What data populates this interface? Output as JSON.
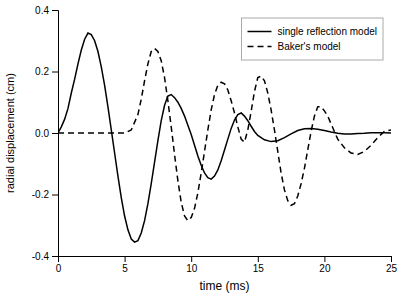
{
  "chart_data": {
    "type": "line",
    "xlabel": "time (ms)",
    "ylabel": "radial displacement (cm)",
    "xlim": [
      0,
      25
    ],
    "ylim": [
      -0.4,
      0.4
    ],
    "xticks": [
      0,
      5,
      10,
      15,
      20,
      25
    ],
    "yticks": [
      -0.4,
      -0.2,
      {
        "value": 0.0,
        "label": "0.0"
      },
      0.2,
      0.4
    ],
    "grid": false,
    "legend": "top-right",
    "series": [
      {
        "name": "single reflection model",
        "color": "#000000",
        "line_style": "solid",
        "x": [
          0.0,
          0.25,
          0.5,
          0.75,
          1.0,
          1.25,
          1.5,
          1.75,
          2.0,
          2.25,
          2.5,
          2.75,
          3.0,
          3.25,
          3.5,
          3.75,
          4.0,
          4.25,
          4.5,
          4.75,
          5.0,
          5.25,
          5.5,
          5.75,
          6.0,
          6.25,
          6.5,
          6.75,
          7.0,
          7.25,
          7.5,
          7.75,
          8.0,
          8.25,
          8.5,
          8.75,
          9.0,
          9.25,
          9.5,
          9.75,
          10.0,
          10.25,
          10.5,
          10.75,
          11.0,
          11.25,
          11.5,
          11.75,
          12.0,
          12.25,
          12.5,
          12.75,
          13.0,
          13.25,
          13.5,
          13.75,
          14.0,
          14.25,
          14.5,
          14.75,
          15.0,
          15.5,
          16.0,
          16.5,
          17.0,
          17.5,
          18.0,
          18.5,
          19.0,
          19.5,
          20.0,
          20.5,
          21.0,
          21.5,
          22.0,
          22.5,
          23.0,
          23.5,
          24.0,
          24.5,
          25.0
        ],
        "values": [
          0.0,
          0.02,
          0.045,
          0.08,
          0.13,
          0.175,
          0.225,
          0.27,
          0.305,
          0.325,
          0.32,
          0.3,
          0.265,
          0.215,
          0.155,
          0.085,
          0.01,
          -0.065,
          -0.14,
          -0.21,
          -0.27,
          -0.315,
          -0.345,
          -0.355,
          -0.35,
          -0.325,
          -0.285,
          -0.23,
          -0.165,
          -0.095,
          -0.025,
          0.04,
          0.09,
          0.12,
          0.125,
          0.115,
          0.1,
          0.08,
          0.055,
          0.025,
          -0.005,
          -0.04,
          -0.075,
          -0.105,
          -0.13,
          -0.145,
          -0.15,
          -0.14,
          -0.12,
          -0.09,
          -0.055,
          -0.02,
          0.015,
          0.042,
          0.06,
          0.065,
          0.055,
          0.04,
          0.022,
          0.005,
          -0.008,
          -0.022,
          -0.028,
          -0.025,
          -0.015,
          -0.003,
          0.008,
          0.014,
          0.015,
          0.012,
          0.008,
          0.003,
          -0.001,
          -0.003,
          -0.003,
          -0.002,
          -0.001,
          0.001,
          0.001,
          0.001,
          0.0
        ]
      },
      {
        "name": "Baker's model",
        "color": "#000000",
        "line_style": "dashed",
        "x": [
          0.0,
          0.5,
          1.0,
          1.5,
          2.0,
          2.5,
          3.0,
          3.5,
          4.0,
          4.5,
          5.0,
          5.5,
          6.0,
          6.25,
          6.5,
          6.75,
          7.0,
          7.25,
          7.5,
          7.75,
          8.0,
          8.25,
          8.5,
          8.75,
          9.0,
          9.25,
          9.5,
          9.75,
          10.0,
          10.25,
          10.5,
          10.75,
          11.0,
          11.25,
          11.5,
          11.75,
          12.0,
          12.25,
          12.5,
          12.75,
          13.0,
          13.25,
          13.5,
          13.75,
          14.0,
          14.25,
          14.5,
          14.75,
          15.0,
          15.25,
          15.5,
          15.75,
          16.0,
          16.25,
          16.5,
          16.75,
          17.0,
          17.25,
          17.5,
          17.75,
          18.0,
          18.25,
          18.5,
          18.75,
          19.0,
          19.25,
          19.5,
          19.75,
          20.0,
          20.25,
          20.5,
          20.75,
          21.0,
          21.5,
          22.0,
          22.5,
          23.0,
          23.5,
          24.0,
          24.5,
          25.0
        ],
        "values": [
          0.0,
          0.0,
          0.0,
          0.0,
          0.0,
          0.0,
          0.0,
          0.0,
          0.0,
          0.0,
          0.0,
          0.01,
          0.06,
          0.11,
          0.17,
          0.225,
          0.265,
          0.275,
          0.265,
          0.235,
          0.18,
          0.105,
          0.02,
          -0.07,
          -0.155,
          -0.225,
          -0.27,
          -0.285,
          -0.275,
          -0.245,
          -0.195,
          -0.13,
          -0.06,
          0.01,
          0.075,
          0.125,
          0.155,
          0.165,
          0.16,
          0.14,
          0.105,
          0.065,
          0.02,
          -0.02,
          -0.03,
          0.01,
          0.07,
          0.135,
          0.18,
          0.185,
          0.17,
          0.13,
          0.075,
          0.01,
          -0.06,
          -0.13,
          -0.185,
          -0.22,
          -0.235,
          -0.23,
          -0.205,
          -0.165,
          -0.115,
          -0.055,
          0.005,
          0.055,
          0.085,
          0.085,
          0.072,
          0.055,
          0.03,
          0.005,
          -0.02,
          -0.048,
          -0.065,
          -0.07,
          -0.06,
          -0.04,
          -0.015,
          0.005,
          0.01
        ]
      }
    ]
  }
}
